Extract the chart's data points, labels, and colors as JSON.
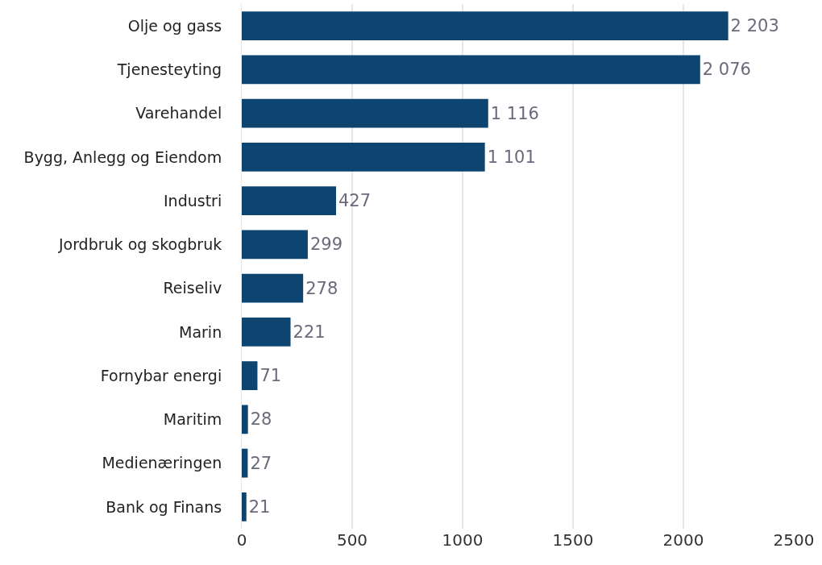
{
  "chart_data": {
    "type": "bar",
    "orientation": "horizontal",
    "categories": [
      "Olje og gass",
      "Tjenesteyting",
      "Varehandel",
      "Bygg, Anlegg og Eiendom",
      "Industri",
      "Jordbruk og skogbruk",
      "Reiseliv",
      "Marin",
      "Fornybar energi",
      "Maritim",
      "Medienæringen",
      "Bank og Finans"
    ],
    "values": [
      2203,
      2076,
      1116,
      1101,
      427,
      299,
      278,
      221,
      71,
      28,
      27,
      21
    ],
    "value_labels": [
      "2 203",
      "2 076",
      "1 116",
      "1 101",
      "427",
      "299",
      "278",
      "221",
      "71",
      "28",
      "27",
      "21"
    ],
    "color": "#0e4470",
    "xlim": [
      0,
      2500
    ],
    "xticks": [
      0,
      500,
      1000,
      1500,
      2000,
      2500
    ],
    "grid": "x",
    "legend": false
  }
}
